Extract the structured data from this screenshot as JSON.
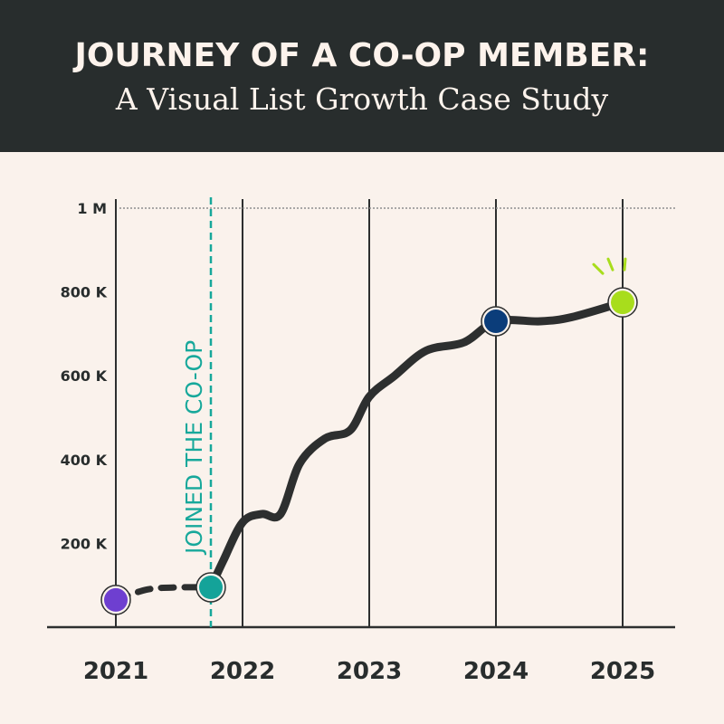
{
  "header": {
    "title": "JOURNEY OF A CO-OP MEMBER:",
    "subtitle": "A Visual List Growth Case Study"
  },
  "colors": {
    "background": "#faf2ec",
    "header_bg": "#282d2d",
    "header_text": "#fdf3ec",
    "line": "#2d2f2f",
    "annotation": "#17a89b"
  },
  "annotation": {
    "label": "JOINED THE CO-OP",
    "x": 2021.75
  },
  "chart_data": {
    "type": "line",
    "title": "JOURNEY OF A CO-OP MEMBER:",
    "subtitle": "A Visual List Growth Case Study",
    "xlabel": "",
    "ylabel": "",
    "xlim": [
      2020.95,
      2026.0
    ],
    "ylim": [
      0,
      1000000
    ],
    "x_ticks": [
      "2021",
      "2022",
      "2023",
      "2024",
      "2025"
    ],
    "y_ticks": [
      {
        "value": 200000,
        "label": "200 K"
      },
      {
        "value": 400000,
        "label": "400 K"
      },
      {
        "value": 600000,
        "label": "600 K"
      },
      {
        "value": 800000,
        "label": "800 K"
      },
      {
        "value": 1000000,
        "label": "1 M"
      }
    ],
    "grid": "vertical lines at years",
    "legend": "none",
    "series": [
      {
        "points": [
          {
            "x": 2021.0,
            "y": 65000
          },
          {
            "x": 2021.25,
            "y": 90000
          },
          {
            "x": 2021.5,
            "y": 95000
          },
          {
            "x": 2021.75,
            "y": 95000
          },
          {
            "x": 2021.85,
            "y": 160000
          },
          {
            "x": 2022.0,
            "y": 250000
          },
          {
            "x": 2022.15,
            "y": 270000
          },
          {
            "x": 2022.3,
            "y": 270000
          },
          {
            "x": 2022.45,
            "y": 390000
          },
          {
            "x": 2022.65,
            "y": 450000
          },
          {
            "x": 2022.85,
            "y": 470000
          },
          {
            "x": 2023.0,
            "y": 550000
          },
          {
            "x": 2023.2,
            "y": 600000
          },
          {
            "x": 2023.45,
            "y": 660000
          },
          {
            "x": 2023.75,
            "y": 680000
          },
          {
            "x": 2024.0,
            "y": 730000
          },
          {
            "x": 2024.35,
            "y": 730000
          },
          {
            "x": 2024.6,
            "y": 740000
          },
          {
            "x": 2025.0,
            "y": 775000
          }
        ],
        "dashed_until_x": 2021.75
      }
    ],
    "markers": [
      {
        "x": 2021.0,
        "y": 65000,
        "color": "#6e3fd0"
      },
      {
        "x": 2021.75,
        "y": 95000,
        "color": "#14a399"
      },
      {
        "x": 2024.0,
        "y": 730000,
        "color": "#0b3d7a"
      },
      {
        "x": 2025.0,
        "y": 775000,
        "color": "#a8dd1c",
        "highlight": true
      }
    ]
  }
}
